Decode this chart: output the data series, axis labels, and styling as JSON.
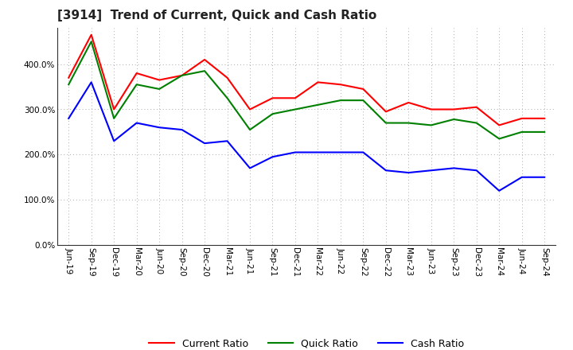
{
  "title": "[3914]  Trend of Current, Quick and Cash Ratio",
  "x_labels": [
    "Jun-19",
    "Sep-19",
    "Dec-19",
    "Mar-20",
    "Jun-20",
    "Sep-20",
    "Dec-20",
    "Mar-21",
    "Jun-21",
    "Sep-21",
    "Dec-21",
    "Mar-22",
    "Jun-22",
    "Sep-22",
    "Dec-22",
    "Mar-23",
    "Jun-23",
    "Sep-23",
    "Dec-23",
    "Mar-24",
    "Jun-24",
    "Sep-24"
  ],
  "current_ratio": [
    370,
    465,
    300,
    380,
    365,
    375,
    410,
    370,
    300,
    325,
    325,
    360,
    355,
    345,
    295,
    315,
    300,
    300,
    305,
    265,
    280,
    280
  ],
  "quick_ratio": [
    355,
    450,
    280,
    355,
    345,
    375,
    385,
    325,
    255,
    290,
    300,
    310,
    320,
    320,
    270,
    270,
    265,
    278,
    270,
    235,
    250,
    250
  ],
  "cash_ratio": [
    280,
    360,
    230,
    270,
    260,
    255,
    225,
    230,
    170,
    195,
    205,
    205,
    205,
    205,
    165,
    160,
    165,
    170,
    165,
    120,
    150,
    150
  ],
  "ylim": [
    0,
    480
  ],
  "yticks": [
    0,
    100,
    200,
    300,
    400
  ],
  "line_colors": {
    "current": "#ff0000",
    "quick": "#008000",
    "cash": "#0000ff"
  },
  "legend_labels": [
    "Current Ratio",
    "Quick Ratio",
    "Cash Ratio"
  ],
  "background_color": "#ffffff",
  "grid_color": "#aaaaaa",
  "line_width": 1.5,
  "title_fontsize": 11,
  "tick_fontsize": 7.5,
  "legend_fontsize": 9
}
